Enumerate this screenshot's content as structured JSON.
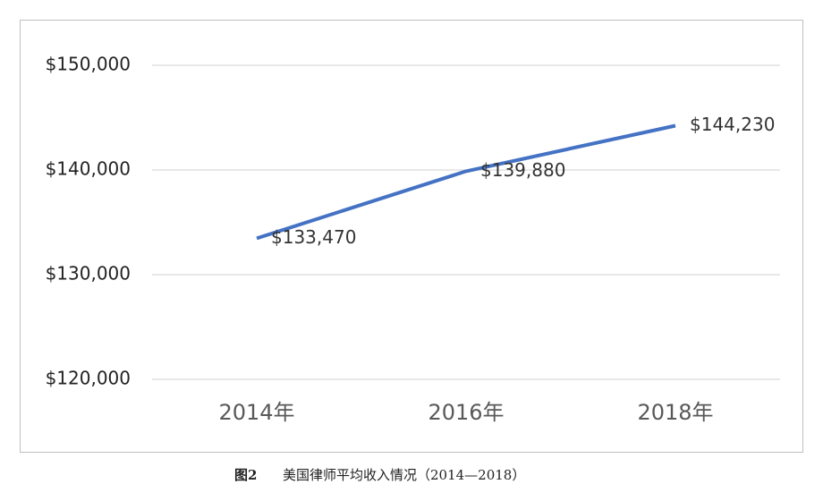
{
  "chart_data": {
    "type": "line",
    "categories": [
      "2014年",
      "2016年",
      "2018年"
    ],
    "series": [
      {
        "name": null,
        "color": "#4472c4",
        "values": [
          133470,
          139880,
          144230
        ],
        "value_labels": [
          "$133,470",
          "$139,880",
          "$144,230"
        ]
      }
    ],
    "ylim": [
      120000,
      150000
    ],
    "yticks": [
      {
        "value": 120000,
        "label": "$120,000"
      },
      {
        "value": 130000,
        "label": "$130,000"
      },
      {
        "value": 140000,
        "label": "$140,000"
      },
      {
        "value": 150000,
        "label": "$150,000"
      }
    ],
    "grid": true,
    "caption_label": "图2",
    "caption": "美国律师平均收入情况（2014—2018）"
  }
}
